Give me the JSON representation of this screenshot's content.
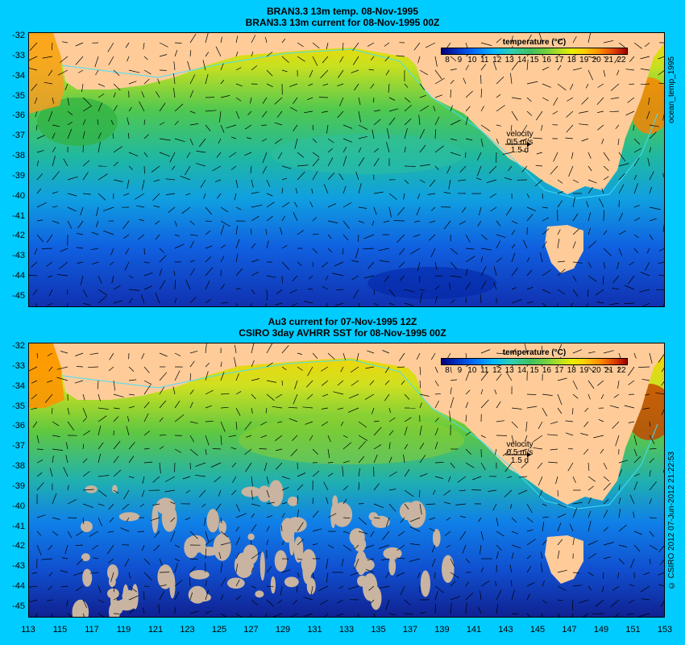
{
  "top_panel": {
    "title_line1": "BRAN3.3 13m temp. 08-Nov-1995",
    "title_line2": "BRAN3.3 13m current for 08-Nov-1995 00Z",
    "side_label": "ocean_temp_1995"
  },
  "bottom_panel": {
    "title_line1": "Au3 current for 07-Nov-1995 12Z",
    "title_line2": "CSIRO 3day AVHRR SST for 08-Nov-1995 00Z",
    "side_label": "© CSIRO 2012  07-Jun-2012 21:22:53"
  },
  "colorbar": {
    "title": "temperature (°C)",
    "ticks": [
      "8",
      "9",
      "10",
      "11",
      "12",
      "13",
      "14",
      "15",
      "16",
      "17",
      "18",
      "19",
      "20",
      "21",
      "22"
    ]
  },
  "velocity_legend": {
    "label": "velocity",
    "speed": "0.5 m/s",
    "time": "1.5 d"
  },
  "axes": {
    "lat_ticks": [
      "-32",
      "-33",
      "-34",
      "-35",
      "-36",
      "-37",
      "-38",
      "-39",
      "-40",
      "-41",
      "-42",
      "-43",
      "-44",
      "-45"
    ],
    "lon_ticks": [
      "113",
      "115",
      "117",
      "119",
      "121",
      "123",
      "125",
      "127",
      "129",
      "131",
      "133",
      "135",
      "137",
      "139",
      "141",
      "143",
      "145",
      "147",
      "149",
      "151",
      "153"
    ]
  },
  "colors": {
    "background": "#00ccff",
    "land": "#ffcc99",
    "missing_data": "#c8b4a0"
  }
}
